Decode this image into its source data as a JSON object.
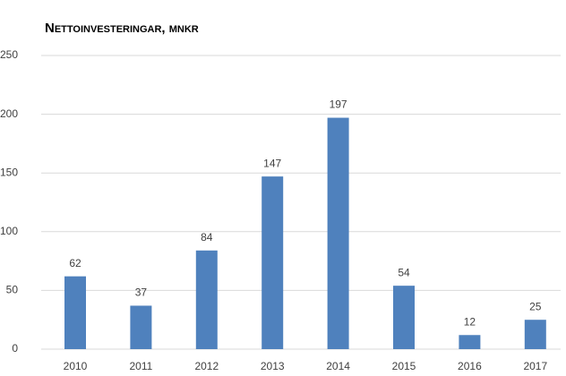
{
  "chart_data": {
    "type": "bar",
    "title": "Nettoinvesteringar, mnkr",
    "categories": [
      "2010",
      "2011",
      "2012",
      "2013",
      "2014",
      "2015",
      "2016",
      "2017"
    ],
    "values": [
      62,
      37,
      84,
      147,
      197,
      54,
      12,
      25
    ],
    "color": "#4f81bd",
    "ylim": [
      0,
      250
    ],
    "yticks": [
      0,
      50,
      100,
      150,
      200,
      250
    ],
    "grid": true
  }
}
